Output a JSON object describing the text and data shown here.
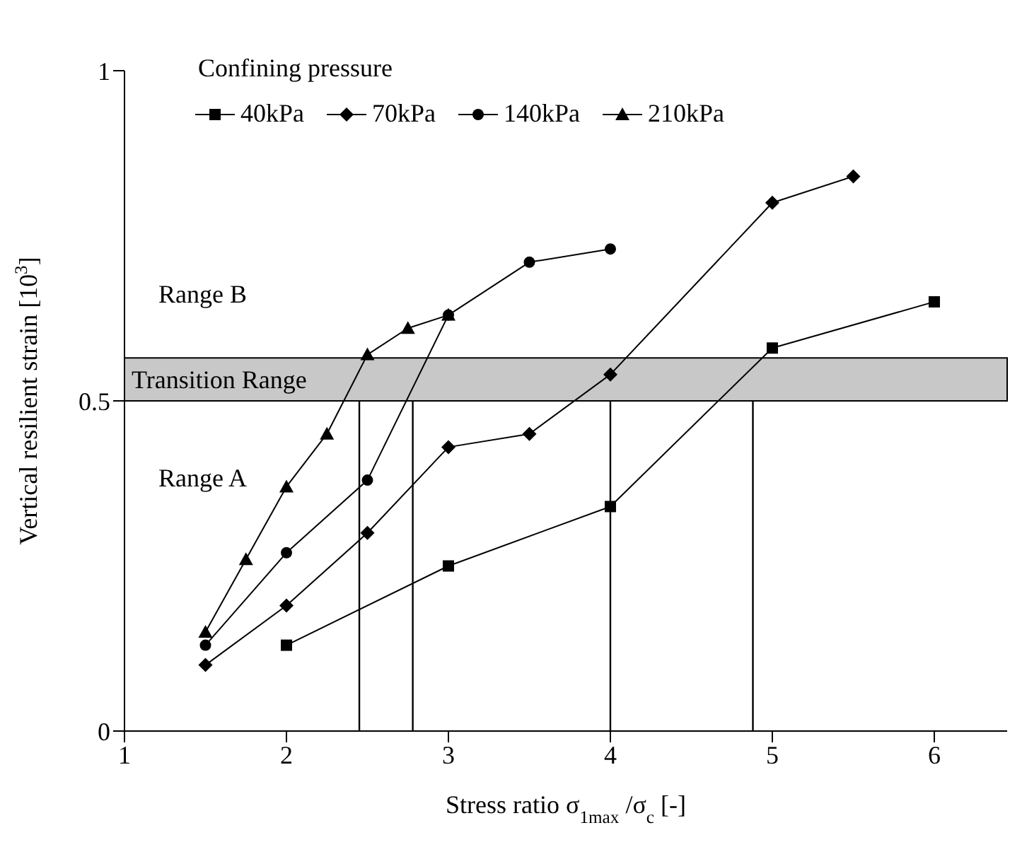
{
  "chart_data": {
    "type": "line",
    "xlabel": "Stress ratio σ$_{1max}$ /σ$_{c}$ [-]",
    "ylabel": "Vertical  resilient strain [10$^{3}$]",
    "legend_title": "Confining pressure",
    "legend": "top left",
    "line_style": "solid",
    "xlim": [
      1,
      6.45
    ],
    "xticks": [
      1,
      2,
      3,
      4,
      5,
      6
    ],
    "ylim": [
      0,
      1
    ],
    "yticks": [
      0,
      0.5,
      1
    ],
    "series": [
      {
        "name": "40kPa",
        "color": "#000000",
        "marker": "square",
        "x": [
          2,
          3,
          4,
          5,
          6
        ],
        "values": [
          0.13,
          0.25,
          0.34,
          0.58,
          0.65
        ]
      },
      {
        "name": "70kPa",
        "color": "#000000",
        "marker": "diamond",
        "x": [
          1.5,
          2,
          2.5,
          3,
          3.5,
          4,
          5,
          5.5
        ],
        "values": [
          0.1,
          0.19,
          0.3,
          0.43,
          0.45,
          0.54,
          0.8,
          0.84
        ]
      },
      {
        "name": "140kPa",
        "color": "#000000",
        "marker": "circle",
        "x": [
          1.5,
          2,
          2.5,
          3,
          3.5,
          4
        ],
        "values": [
          0.13,
          0.27,
          0.38,
          0.63,
          0.71,
          0.73
        ]
      },
      {
        "name": "210kPa",
        "color": "#000000",
        "marker": "triangle",
        "x": [
          1.5,
          1.75,
          2,
          2.25,
          2.5,
          2.75,
          3
        ],
        "values": [
          0.15,
          0.26,
          0.37,
          0.45,
          0.57,
          0.61,
          0.63
        ]
      }
    ],
    "bands": [
      {
        "axis": "y",
        "from": 0.5,
        "to": 0.565,
        "label": "Transition Range",
        "color": "#c8c8c8"
      }
    ],
    "ref_lines": [
      {
        "axis": "x",
        "value": 2.45,
        "color": "#000000"
      },
      {
        "axis": "x",
        "value": 2.78,
        "color": "#000000"
      },
      {
        "axis": "x",
        "value": 4,
        "color": "#000000"
      },
      {
        "axis": "x",
        "value": 4.88,
        "color": "#000000"
      }
    ],
    "annotations": [
      "Range B",
      "Range A"
    ]
  }
}
